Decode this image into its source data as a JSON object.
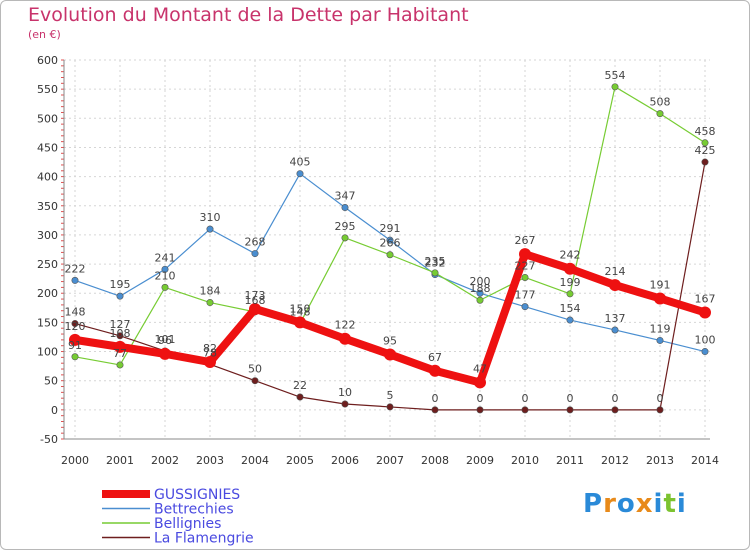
{
  "chart_data": {
    "type": "line",
    "title": "Evolution du Montant de la Dette par Habitant",
    "subtitle": "(en €)",
    "x": [
      "2000",
      "2001",
      "2002",
      "2003",
      "2004",
      "2005",
      "2006",
      "2007",
      "2008",
      "2009",
      "2010",
      "2011",
      "2012",
      "2013",
      "2014"
    ],
    "ylim": [
      -50,
      600
    ],
    "yticks": [
      -50,
      0,
      50,
      100,
      150,
      200,
      250,
      300,
      350,
      400,
      450,
      500,
      550,
      600
    ],
    "grid": true,
    "legend_position": "bottom-left",
    "series": [
      {
        "name": "GUSSIGNIES",
        "color": "#ee1111",
        "values": [
          120,
          108,
          96,
          82,
          173,
          150,
          122,
          95,
          67,
          47,
          267,
          242,
          214,
          191,
          167
        ]
      },
      {
        "name": "Bettrechies",
        "color": "#4a8ed0",
        "values": [
          222,
          195,
          241,
          310,
          268,
          405,
          347,
          291,
          232,
          200,
          177,
          154,
          137,
          119,
          100
        ]
      },
      {
        "name": "Bellignies",
        "color": "#77cc33",
        "values": [
          91,
          77,
          210,
          184,
          168,
          148,
          295,
          266,
          235,
          188,
          227,
          199,
          554,
          508,
          458
        ]
      },
      {
        "name": "La Flamengrie",
        "color": "#6e1e1e",
        "values": [
          148,
          127,
          101,
          78,
          50,
          22,
          10,
          5,
          0,
          0,
          0,
          0,
          0,
          0,
          425
        ]
      }
    ]
  },
  "logo": {
    "text": "Proxiti",
    "letters": [
      "P",
      "r",
      "o",
      "x",
      "i",
      "t",
      "i"
    ],
    "colors": [
      "#2a8ad8",
      "#e88a1a",
      "#2a8ad8",
      "#e88a1a",
      "#2a8ad8",
      "#7cc330",
      "#2a8ad8"
    ]
  }
}
